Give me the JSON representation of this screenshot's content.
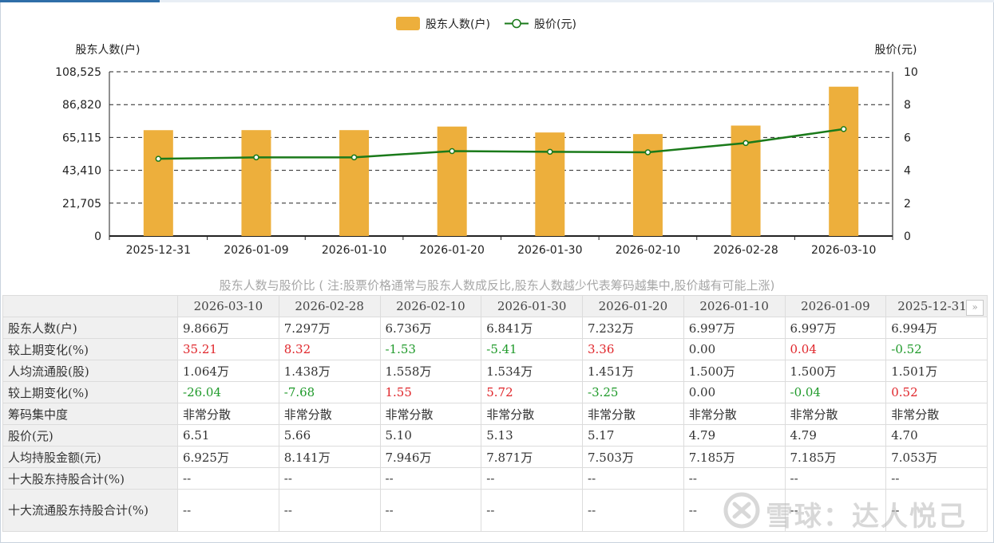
{
  "chart_data": {
    "type": "bar",
    "categories": [
      "2025-12-31",
      "2026-01-09",
      "2026-01-10",
      "2026-01-20",
      "2026-01-30",
      "2026-02-10",
      "2026-02-28",
      "2026-03-10"
    ],
    "series": [
      {
        "name": "股东人数(户)",
        "type": "bar",
        "axis": "left",
        "values": [
          69940,
          69970,
          69970,
          72320,
          68410,
          67360,
          72970,
          98660
        ]
      },
      {
        "name": "股价(元)",
        "type": "line",
        "axis": "right",
        "values": [
          4.7,
          4.79,
          4.79,
          5.17,
          5.13,
          5.1,
          5.66,
          6.51
        ]
      }
    ],
    "ylabel_left": "股东人数(户)",
    "ylabel_right": "股价(元)",
    "ylim_left": [
      0,
      108525
    ],
    "yticks_left": [
      "0",
      "21,705",
      "43,410",
      "65,115",
      "86,820",
      "108,525"
    ],
    "ylim_right": [
      0,
      10
    ],
    "yticks_right": [
      "0",
      "2",
      "4",
      "6",
      "8",
      "10"
    ],
    "grid": "dashed horizontal",
    "legend": "top-center",
    "colors": {
      "bar": "#edaf3c",
      "line": "#1a7a1a"
    }
  },
  "caption": "股东人数与股价比 ( 注:股票价格通常与股东人数成反比,股东人数越少代表筹码越集中,股价越有可能上涨)",
  "table": {
    "headers": [
      "2026-03-10",
      "2026-02-28",
      "2026-02-10",
      "2026-01-30",
      "2026-01-20",
      "2026-01-10",
      "2026-01-09",
      "2025-12-31"
    ],
    "rows": [
      {
        "label": "股东人数(户)",
        "cells": [
          [
            "9.866万",
            ""
          ],
          [
            "7.297万",
            ""
          ],
          [
            "6.736万",
            ""
          ],
          [
            "6.841万",
            ""
          ],
          [
            "7.232万",
            ""
          ],
          [
            "6.997万",
            ""
          ],
          [
            "6.997万",
            ""
          ],
          [
            "6.994万",
            ""
          ]
        ]
      },
      {
        "label": "较上期变化(%)",
        "cells": [
          [
            "35.21",
            "pos"
          ],
          [
            "8.32",
            "pos"
          ],
          [
            "-1.53",
            "neg"
          ],
          [
            "-5.41",
            "neg"
          ],
          [
            "3.36",
            "pos"
          ],
          [
            "0.00",
            ""
          ],
          [
            "0.04",
            "pos"
          ],
          [
            "-0.52",
            "neg"
          ]
        ]
      },
      {
        "label": "人均流通股(股)",
        "cells": [
          [
            "1.064万",
            ""
          ],
          [
            "1.438万",
            ""
          ],
          [
            "1.558万",
            ""
          ],
          [
            "1.534万",
            ""
          ],
          [
            "1.451万",
            ""
          ],
          [
            "1.500万",
            ""
          ],
          [
            "1.500万",
            ""
          ],
          [
            "1.501万",
            ""
          ]
        ]
      },
      {
        "label": "较上期变化(%)",
        "cells": [
          [
            "-26.04",
            "neg"
          ],
          [
            "-7.68",
            "neg"
          ],
          [
            "1.55",
            "pos"
          ],
          [
            "5.72",
            "pos"
          ],
          [
            "-3.25",
            "neg"
          ],
          [
            "0.00",
            ""
          ],
          [
            "-0.04",
            "neg"
          ],
          [
            "0.52",
            "pos"
          ]
        ]
      },
      {
        "label": "筹码集中度",
        "cells": [
          [
            "非常分散",
            ""
          ],
          [
            "非常分散",
            ""
          ],
          [
            "非常分散",
            ""
          ],
          [
            "非常分散",
            ""
          ],
          [
            "非常分散",
            ""
          ],
          [
            "非常分散",
            ""
          ],
          [
            "非常分散",
            ""
          ],
          [
            "非常分散",
            ""
          ]
        ]
      },
      {
        "label": "股价(元)",
        "cells": [
          [
            "6.51",
            ""
          ],
          [
            "5.66",
            ""
          ],
          [
            "5.10",
            ""
          ],
          [
            "5.13",
            ""
          ],
          [
            "5.17",
            ""
          ],
          [
            "4.79",
            ""
          ],
          [
            "4.79",
            ""
          ],
          [
            "4.70",
            ""
          ]
        ]
      },
      {
        "label": "人均持股金额(元)",
        "cells": [
          [
            "6.925万",
            ""
          ],
          [
            "8.141万",
            ""
          ],
          [
            "7.946万",
            ""
          ],
          [
            "7.871万",
            ""
          ],
          [
            "7.503万",
            ""
          ],
          [
            "7.185万",
            ""
          ],
          [
            "7.185万",
            ""
          ],
          [
            "7.053万",
            ""
          ]
        ]
      },
      {
        "label": "十大股东持股合计(%)",
        "cells": [
          [
            "--",
            ""
          ],
          [
            "--",
            ""
          ],
          [
            "--",
            ""
          ],
          [
            "--",
            ""
          ],
          [
            "--",
            ""
          ],
          [
            "--",
            ""
          ],
          [
            "--",
            ""
          ],
          [
            "--",
            ""
          ]
        ]
      },
      {
        "label": "十大流通股东持股合计(%)",
        "cells": [
          [
            "--",
            ""
          ],
          [
            "--",
            ""
          ],
          [
            "--",
            ""
          ],
          [
            "--",
            ""
          ],
          [
            "--",
            ""
          ],
          [
            "--",
            ""
          ],
          [
            "--",
            ""
          ],
          [
            "--",
            ""
          ]
        ],
        "tall": true
      }
    ],
    "next_icon": "double-chevron-right-icon"
  },
  "watermark": {
    "text": "雪球：达人悦己",
    "icon": "xueqiu-logo-icon"
  }
}
